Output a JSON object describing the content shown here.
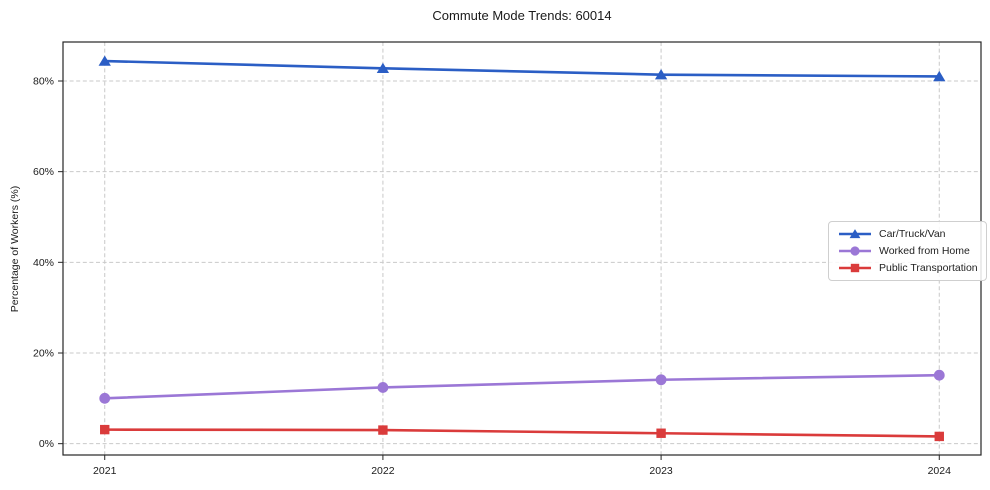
{
  "figure": {
    "background": "#ffffff"
  },
  "chart_data": {
    "type": "line",
    "title": "Commute Mode Trends: 60014",
    "xlabel": "",
    "ylabel": "Percentage of Workers (%)",
    "x": [
      2021,
      2022,
      2023,
      2024
    ],
    "x_tick_labels": [
      "2021",
      "2022",
      "2023",
      "2024"
    ],
    "series": [
      {
        "name": "Car/Truck/Van",
        "marker": "triangle",
        "color": "#2b5ec5",
        "values": [
          84.4,
          82.8,
          81.4,
          81.0
        ]
      },
      {
        "name": "Worked from Home",
        "marker": "circle",
        "color": "#9b77d6",
        "values": [
          10.0,
          12.4,
          14.1,
          15.1
        ]
      },
      {
        "name": "Public Transportation",
        "marker": "square",
        "color": "#da3b3b",
        "values": [
          3.1,
          3.0,
          2.3,
          1.6
        ]
      }
    ],
    "yticks": [
      0,
      20,
      40,
      60,
      80
    ],
    "ytick_labels": [
      "0%",
      "20%",
      "40%",
      "60%",
      "80%"
    ],
    "xlim": [
      2020.85,
      2024.15
    ],
    "ylim": [
      -2.5,
      88.6
    ],
    "grid": true,
    "grid_style": "dashed",
    "legend_position": "center-right",
    "colors": {
      "grid": "#c9c9c9",
      "frame": "#262626",
      "text": "#1a1a1a"
    }
  }
}
